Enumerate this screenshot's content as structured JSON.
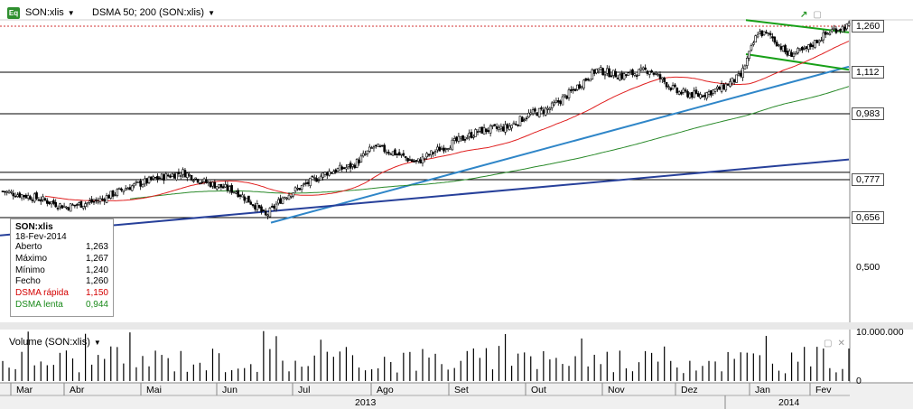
{
  "header": {
    "symbol_badge": "Eq",
    "symbol_label": "SON:xlis",
    "indicator_label": "DSMA 50; 200 (SON:xlis)"
  },
  "info_box": {
    "title": "SON:xlis",
    "date": "18-Fev-2014",
    "rows": [
      {
        "label": "Aberto",
        "value": "1,263"
      },
      {
        "label": "Máximo",
        "value": "1,267"
      },
      {
        "label": "Mínimo",
        "value": "1,240"
      },
      {
        "label": "Fecho",
        "value": "1,260"
      },
      {
        "label": "DSMA rápida",
        "value": "1,150"
      },
      {
        "label": "DSMA lenta",
        "value": "0,944"
      }
    ]
  },
  "price_axis": {
    "tags": [
      "1,260",
      "1,112",
      "0,983",
      "0,777",
      "0,656"
    ],
    "labels": [
      "0,500"
    ]
  },
  "volume_panel": {
    "title": "Volume (SON:xlis)",
    "axis_labels": [
      "10.000.000",
      "0"
    ]
  },
  "time_axis": {
    "months": [
      "Mar",
      "Abr",
      "Mai",
      "Jun",
      "Jul",
      "Ago",
      "Set",
      "Out",
      "Nov",
      "Dez",
      "Jan",
      "Fev"
    ],
    "years": [
      "2013",
      "2014"
    ]
  },
  "colors": {
    "candle": "#000000",
    "fast_ma": "#e02020",
    "slow_ma": "#2a8a2a",
    "trend_light": "#2f86c8",
    "trend_dark": "#27409a",
    "channel": "#18a018",
    "hline": "#000000",
    "last_price": "#d03030"
  },
  "chart_data": {
    "type": "candlestick",
    "symbol": "SON:xlis",
    "months": [
      "Mar",
      "Abr",
      "Mai",
      "Jun",
      "Jul",
      "Ago",
      "Set",
      "Out",
      "Nov",
      "Dez",
      "Jan",
      "Fev"
    ],
    "years": [
      "2013",
      "2014"
    ],
    "price_ticks": [
      0.5,
      0.656,
      0.777,
      0.983,
      1.112,
      1.26
    ],
    "horizontal_levels": [
      0.656,
      0.777,
      0.8,
      0.983,
      1.112
    ],
    "last_price": 1.26,
    "fast_ma_last": 1.15,
    "slow_ma_last": 0.944,
    "close_path": [
      [
        0,
        0.74
      ],
      [
        15,
        0.72
      ],
      [
        30,
        0.69
      ],
      [
        45,
        0.71
      ],
      [
        58,
        0.75
      ],
      [
        72,
        0.78
      ],
      [
        85,
        0.8
      ],
      [
        95,
        0.77
      ],
      [
        110,
        0.74
      ],
      [
        120,
        0.69
      ],
      [
        124,
        0.66
      ],
      [
        132,
        0.72
      ],
      [
        145,
        0.77
      ],
      [
        153,
        0.8
      ],
      [
        165,
        0.82
      ],
      [
        175,
        0.88
      ],
      [
        185,
        0.86
      ],
      [
        195,
        0.83
      ],
      [
        205,
        0.87
      ],
      [
        215,
        0.9
      ],
      [
        225,
        0.93
      ],
      [
        238,
        0.94
      ],
      [
        248,
        0.98
      ],
      [
        258,
        1.0
      ],
      [
        268,
        1.05
      ],
      [
        280,
        1.12
      ],
      [
        292,
        1.1
      ],
      [
        305,
        1.12
      ],
      [
        318,
        1.05
      ],
      [
        328,
        1.04
      ],
      [
        338,
        1.06
      ],
      [
        348,
        1.1
      ],
      [
        356,
        1.24
      ],
      [
        362,
        1.23
      ],
      [
        370,
        1.17
      ],
      [
        378,
        1.18
      ],
      [
        385,
        1.22
      ],
      [
        392,
        1.25
      ],
      [
        399,
        1.26
      ]
    ],
    "volume_max": 10000000
  }
}
